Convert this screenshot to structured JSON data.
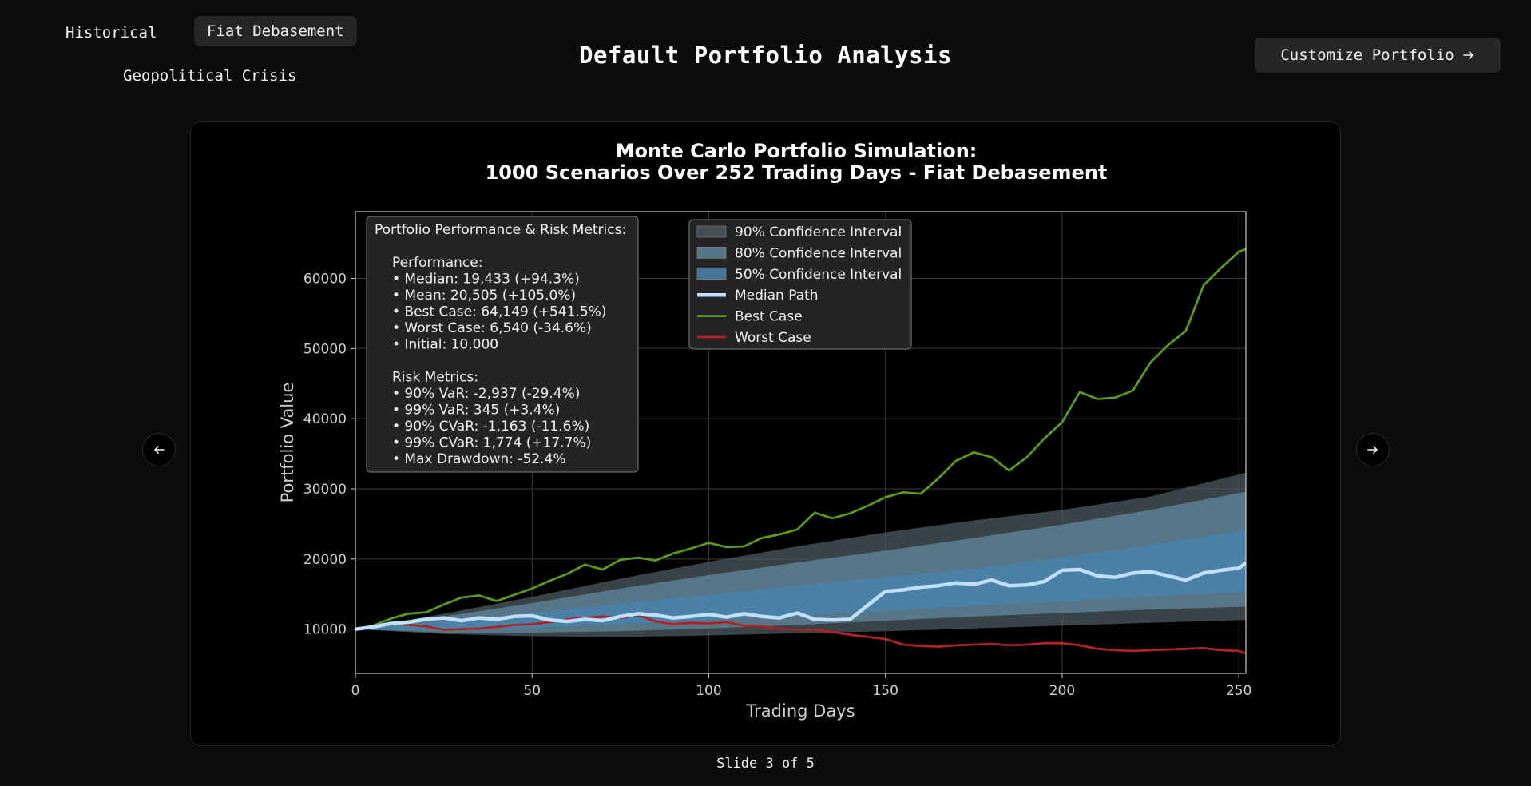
{
  "tabs": [
    {
      "label": "Historical",
      "active": false
    },
    {
      "label": "Fiat Debasement",
      "active": true
    },
    {
      "label": "Geopolitical Crisis",
      "active": false
    }
  ],
  "page_title": "Default Portfolio Analysis",
  "customize_button": {
    "label": "Customize Portfolio",
    "icon": "arrow-right-icon"
  },
  "nav": {
    "prev_icon": "arrow-left-icon",
    "next_icon": "arrow-right-icon"
  },
  "slide_counter": "Slide 3 of 5",
  "colors": {
    "background": "#0c0c0c",
    "best_case": "#5a9a1a",
    "worst_case": "#b22222",
    "median": "#bfe0ff",
    "ci90": "#4c5a60",
    "ci80": "#5f8599",
    "ci50": "#4a82ad"
  },
  "chart_data": {
    "type": "line",
    "title_lines": [
      "Monte Carlo Portfolio Simulation:",
      "1000 Scenarios Over 252 Trading Days - Fiat Debasement"
    ],
    "xlabel": "Trading Days",
    "ylabel": "Portfolio Value",
    "xlim": [
      0,
      252
    ],
    "ylim": [
      3700,
      69500
    ],
    "xticks": [
      0,
      50,
      100,
      150,
      200,
      250
    ],
    "yticks": [
      10000,
      20000,
      30000,
      40000,
      50000,
      60000
    ],
    "grid": true,
    "legend_position": "top-center",
    "legend": [
      "90% Confidence Interval",
      "80% Confidence Interval",
      "50% Confidence Interval",
      "Median Path",
      "Best Case",
      "Worst Case"
    ],
    "metrics_box": {
      "title": "Portfolio Performance & Risk Metrics:",
      "performance_title": "Performance:",
      "performance": [
        "• Median: 19,433 (+94.3%)",
        "• Mean: 20,505 (+105.0%)",
        "• Best Case: 64,149 (+541.5%)",
        "• Worst Case: 6,540 (-34.6%)",
        "• Initial: 10,000"
      ],
      "risk_title": "Risk Metrics:",
      "risk": [
        "• 90% VaR: -2,937 (-29.4%)",
        "• 99% VaR: 345 (+3.4%)",
        "• 90% CVaR: -1,163 (-11.6%)",
        "• 99% CVaR: 1,774 (+17.7%)",
        "• Max Drawdown: -52.4%"
      ]
    },
    "bands": {
      "x": [
        0,
        25,
        50,
        75,
        100,
        125,
        150,
        175,
        200,
        225,
        252
      ],
      "ci90_low": [
        10000,
        9300,
        9000,
        8900,
        9100,
        9400,
        9700,
        10100,
        10500,
        10900,
        11300
      ],
      "ci90_high": [
        10000,
        12200,
        14600,
        17200,
        19600,
        21800,
        23800,
        25500,
        27000,
        28900,
        32300
      ],
      "ci80_low": [
        10000,
        9500,
        9500,
        9700,
        10100,
        10600,
        11200,
        11800,
        12300,
        12800,
        13200
      ],
      "ci80_high": [
        10000,
        11800,
        13700,
        15800,
        17700,
        19500,
        21200,
        23000,
        24900,
        27000,
        29600
      ],
      "ci50_low": [
        10000,
        9900,
        10200,
        10700,
        11300,
        11900,
        12600,
        13300,
        14000,
        14700,
        15300
      ],
      "ci50_high": [
        10000,
        11100,
        12300,
        13600,
        14900,
        16200,
        17400,
        18600,
        20200,
        22000,
        24100
      ]
    },
    "series": [
      {
        "name": "Median Path",
        "x": [
          0,
          5,
          10,
          15,
          20,
          25,
          30,
          35,
          40,
          45,
          50,
          55,
          60,
          65,
          70,
          75,
          80,
          85,
          90,
          95,
          100,
          105,
          110,
          115,
          120,
          125,
          130,
          135,
          140,
          145,
          150,
          155,
          160,
          165,
          170,
          175,
          180,
          185,
          190,
          195,
          200,
          205,
          210,
          215,
          220,
          225,
          230,
          235,
          240,
          245,
          250,
          252
        ],
        "y": [
          10000,
          10300,
          10800,
          11000,
          11400,
          11600,
          11200,
          11600,
          11400,
          11800,
          11900,
          11300,
          11100,
          11400,
          11200,
          11800,
          12200,
          12000,
          11600,
          11800,
          12100,
          11700,
          12200,
          11800,
          11600,
          12300,
          11400,
          11300,
          11400,
          13400,
          15400,
          15600,
          16000,
          16200,
          16600,
          16400,
          17000,
          16200,
          16300,
          16800,
          18400,
          18500,
          17600,
          17400,
          18000,
          18200,
          17600,
          17000,
          18000,
          18400,
          18700,
          19433
        ]
      },
      {
        "name": "Best Case",
        "x": [
          0,
          5,
          10,
          15,
          20,
          25,
          30,
          35,
          40,
          45,
          50,
          55,
          60,
          65,
          70,
          75,
          80,
          85,
          90,
          95,
          100,
          105,
          110,
          115,
          120,
          125,
          130,
          135,
          140,
          145,
          150,
          155,
          160,
          165,
          170,
          175,
          180,
          185,
          190,
          195,
          200,
          205,
          210,
          215,
          220,
          225,
          230,
          235,
          240,
          245,
          250,
          252
        ],
        "y": [
          10000,
          10500,
          11500,
          12200,
          12400,
          13500,
          14500,
          14800,
          14000,
          14900,
          15800,
          16900,
          17900,
          19200,
          18500,
          19900,
          20200,
          19800,
          20800,
          21500,
          22300,
          21700,
          21800,
          23000,
          23500,
          24200,
          26600,
          25800,
          26500,
          27600,
          28800,
          29500,
          29300,
          31500,
          34000,
          35200,
          34500,
          32600,
          34500,
          37200,
          39500,
          43800,
          42800,
          43000,
          44000,
          48000,
          50500,
          52500,
          59000,
          61500,
          63800,
          64149
        ]
      },
      {
        "name": "Worst Case",
        "x": [
          0,
          5,
          10,
          15,
          20,
          25,
          30,
          35,
          40,
          45,
          50,
          55,
          60,
          65,
          70,
          75,
          80,
          85,
          90,
          95,
          100,
          105,
          110,
          115,
          120,
          125,
          130,
          135,
          140,
          145,
          150,
          155,
          160,
          165,
          170,
          175,
          180,
          185,
          190,
          195,
          200,
          205,
          210,
          215,
          220,
          225,
          230,
          235,
          240,
          245,
          250,
          252
        ],
        "y": [
          10000,
          10400,
          10800,
          10600,
          10400,
          9900,
          10000,
          10100,
          10300,
          10600,
          10700,
          11000,
          11400,
          11600,
          11800,
          11600,
          12000,
          11100,
          10700,
          10900,
          10800,
          11000,
          10500,
          10400,
          10100,
          9900,
          9900,
          9600,
          9200,
          8900,
          8600,
          7800,
          7600,
          7500,
          7700,
          7800,
          7900,
          7700,
          7800,
          8000,
          8000,
          7700,
          7200,
          7000,
          6900,
          7000,
          7100,
          7200,
          7300,
          7000,
          6900,
          6540
        ]
      }
    ]
  }
}
